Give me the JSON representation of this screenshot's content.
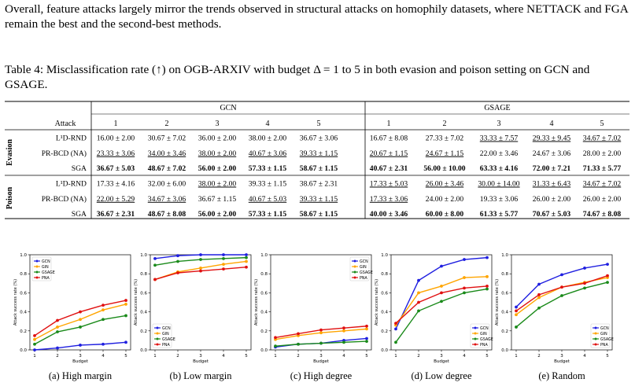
{
  "paragraph": "Overall, feature attacks largely mirror the trends observed in structural attacks on homophily datasets, where NETTACK and FGA remain the best and the second-best methods.",
  "caption": {
    "prefix": "Table 4: Misclassification rate (↑) on OGB-ARXIV with budget Δ = 1 to 5 in both evasion and poison setting on GCN and GSAGE."
  },
  "table": {
    "attack_header": "Attack",
    "model_headers": [
      "GCN",
      "GSAGE"
    ],
    "budget_headers": [
      "1",
      "2",
      "3",
      "4",
      "5"
    ],
    "groups": [
      {
        "name": "Evasion",
        "rows": [
          {
            "attack": "L¹D-RND",
            "cells": [
              "16.00 ± 2.00",
              "30.67 ± 7.02",
              "36.00 ± 2.00",
              "38.00 ± 2.00",
              "36.67 ± 3.06",
              "16.67 ± 8.08",
              "27.33 ± 7.02",
              "33.33 ± 7.57",
              "29.33 ± 9.45",
              "34.67 ± 7.02"
            ],
            "styles": [
              "",
              "",
              "",
              "",
              "",
              "",
              "",
              "u",
              "u",
              "u"
            ]
          },
          {
            "attack": "PR-BCD (NA)",
            "cells": [
              "23.33 ± 3.06",
              "34.00 ± 3.46",
              "38.00 ± 2.00",
              "40.67 ± 3.06",
              "39.33 ± 1.15",
              "20.67 ± 1.15",
              "24.67 ± 1.15",
              "22.00 ± 3.46",
              "24.67 ± 3.06",
              "28.00 ± 2.00"
            ],
            "styles": [
              "u",
              "u",
              "u",
              "u",
              "u",
              "u",
              "u",
              "",
              "",
              ""
            ]
          },
          {
            "attack": "SGA",
            "cells": [
              "36.67 ± 5.03",
              "48.67 ± 7.02",
              "56.00 ± 2.00",
              "57.33 ± 1.15",
              "58.67 ± 1.15",
              "40.67 ± 2.31",
              "56.00 ± 10.00",
              "63.33 ± 4.16",
              "72.00 ± 7.21",
              "71.33 ± 5.77"
            ],
            "styles": [
              "b",
              "b",
              "b",
              "b",
              "b",
              "b",
              "b",
              "b",
              "b",
              "b"
            ]
          }
        ]
      },
      {
        "name": "Poison",
        "rows": [
          {
            "attack": "L¹D-RND",
            "cells": [
              "17.33 ± 4.16",
              "32.00 ± 6.00",
              "38.00 ± 2.00",
              "39.33 ± 1.15",
              "38.67 ± 2.31",
              "17.33 ± 5.03",
              "26.00 ± 3.46",
              "30.00 ± 14.00",
              "31.33 ± 6.43",
              "34.67 ± 7.02"
            ],
            "styles": [
              "",
              "",
              "u",
              "",
              "",
              "u",
              "u",
              "u",
              "u",
              "u"
            ]
          },
          {
            "attack": "PR-BCD (NA)",
            "cells": [
              "22.00 ± 5.29",
              "34.67 ± 3.06",
              "36.67 ± 1.15",
              "40.67 ± 5.03",
              "39.33 ± 1.15",
              "17.33 ± 3.06",
              "24.00 ± 2.00",
              "19.33 ± 3.06",
              "26.00 ± 2.00",
              "26.00 ± 2.00"
            ],
            "styles": [
              "u",
              "u",
              "",
              "u",
              "u",
              "u",
              "",
              "",
              "",
              ""
            ]
          },
          {
            "attack": "SGA",
            "cells": [
              "36.67 ± 2.31",
              "48.67 ± 8.08",
              "56.00 ± 2.00",
              "57.33 ± 1.15",
              "58.67 ± 1.15",
              "40.00 ± 3.46",
              "60.00 ± 8.00",
              "61.33 ± 5.77",
              "70.67 ± 5.03",
              "74.67 ± 8.08"
            ],
            "styles": [
              "b",
              "b",
              "b",
              "b",
              "b",
              "b",
              "b",
              "b",
              "b",
              "b"
            ]
          }
        ]
      }
    ]
  },
  "chart_data": [
    {
      "type": "line",
      "caption": "(a)  High margin",
      "xlabel": "Budget",
      "ylabel": "Attack success rate (%)",
      "x": [
        1,
        2,
        3,
        4,
        5
      ],
      "ylim": [
        0,
        1.0
      ],
      "yticks": [
        "0.0",
        "0.2",
        "0.4",
        "0.6",
        "0.8",
        "1.0"
      ],
      "legend": "top-left",
      "series": [
        {
          "name": "GCN",
          "color": "#1f1fe0",
          "values": [
            0.0,
            0.02,
            0.05,
            0.06,
            0.08
          ]
        },
        {
          "name": "GIN",
          "color": "#ffa500",
          "values": [
            0.11,
            0.24,
            0.32,
            0.42,
            0.48
          ]
        },
        {
          "name": "GSAGE",
          "color": "#1a8a1a",
          "values": [
            0.06,
            0.19,
            0.24,
            0.32,
            0.36
          ]
        },
        {
          "name": "PNA",
          "color": "#e01010",
          "values": [
            0.15,
            0.31,
            0.4,
            0.47,
            0.52
          ]
        }
      ]
    },
    {
      "type": "line",
      "caption": "(b)  Low margin",
      "xlabel": "Budget",
      "ylabel": "Attack success rate (%)",
      "x": [
        1,
        2,
        3,
        4,
        5
      ],
      "ylim": [
        0,
        1.0
      ],
      "yticks": [
        "0.0",
        "0.2",
        "0.4",
        "0.6",
        "0.8",
        "1.0"
      ],
      "legend": "bottom-left",
      "series": [
        {
          "name": "GCN",
          "color": "#1f1fe0",
          "values": [
            0.96,
            0.99,
            1.0,
            1.0,
            1.0
          ]
        },
        {
          "name": "GIN",
          "color": "#ffa500",
          "values": [
            0.74,
            0.82,
            0.86,
            0.9,
            0.93
          ]
        },
        {
          "name": "GSAGE",
          "color": "#1a8a1a",
          "values": [
            0.89,
            0.93,
            0.95,
            0.96,
            0.97
          ]
        },
        {
          "name": "PNA",
          "color": "#e01010",
          "values": [
            0.74,
            0.81,
            0.83,
            0.85,
            0.87
          ]
        }
      ]
    },
    {
      "type": "line",
      "caption": "(c)  High degree",
      "xlabel": "Budget",
      "ylabel": "Attack success rate (%)",
      "x": [
        1,
        2,
        3,
        4,
        5
      ],
      "ylim": [
        0,
        1.0
      ],
      "yticks": [
        "0.0",
        "0.2",
        "0.4",
        "0.6",
        "0.8",
        "1.0"
      ],
      "legend": "top-right",
      "series": [
        {
          "name": "GCN",
          "color": "#1f1fe0",
          "values": [
            0.03,
            0.06,
            0.07,
            0.1,
            0.12
          ]
        },
        {
          "name": "GIN",
          "color": "#ffa500",
          "values": [
            0.11,
            0.15,
            0.18,
            0.2,
            0.22
          ]
        },
        {
          "name": "GSAGE",
          "color": "#1a8a1a",
          "values": [
            0.04,
            0.06,
            0.07,
            0.08,
            0.09
          ]
        },
        {
          "name": "PNA",
          "color": "#e01010",
          "values": [
            0.13,
            0.17,
            0.21,
            0.23,
            0.25
          ]
        }
      ]
    },
    {
      "type": "line",
      "caption": "(d)  Low degree",
      "xlabel": "Budget",
      "ylabel": "Attack success rate (%)",
      "x": [
        1,
        2,
        3,
        4,
        5
      ],
      "ylim": [
        0,
        1.0
      ],
      "yticks": [
        "0.0",
        "0.2",
        "0.4",
        "0.6",
        "0.8",
        "1.0"
      ],
      "legend": "bottom-right",
      "series": [
        {
          "name": "GCN",
          "color": "#1f1fe0",
          "values": [
            0.22,
            0.73,
            0.88,
            0.95,
            0.97
          ]
        },
        {
          "name": "GIN",
          "color": "#ffa500",
          "values": [
            0.26,
            0.6,
            0.67,
            0.76,
            0.77
          ]
        },
        {
          "name": "GSAGE",
          "color": "#1a8a1a",
          "values": [
            0.08,
            0.41,
            0.51,
            0.6,
            0.64
          ]
        },
        {
          "name": "PNA",
          "color": "#e01010",
          "values": [
            0.28,
            0.5,
            0.6,
            0.65,
            0.67
          ]
        }
      ]
    },
    {
      "type": "line",
      "caption": "(e)  Random",
      "xlabel": "Budget",
      "ylabel": "Attack success rate (%)",
      "x": [
        1,
        2,
        3,
        4,
        5
      ],
      "ylim": [
        0,
        1.0
      ],
      "yticks": [
        "0.0",
        "0.2",
        "0.4",
        "0.6",
        "0.8",
        "1.0"
      ],
      "legend": "bottom-right",
      "series": [
        {
          "name": "GCN",
          "color": "#1f1fe0",
          "values": [
            0.45,
            0.69,
            0.79,
            0.86,
            0.9
          ]
        },
        {
          "name": "GIN",
          "color": "#ffa500",
          "values": [
            0.37,
            0.55,
            0.66,
            0.71,
            0.76
          ]
        },
        {
          "name": "GSAGE",
          "color": "#1a8a1a",
          "values": [
            0.24,
            0.44,
            0.57,
            0.65,
            0.71
          ]
        },
        {
          "name": "PNA",
          "color": "#e01010",
          "values": [
            0.41,
            0.58,
            0.66,
            0.7,
            0.78
          ]
        }
      ]
    }
  ]
}
